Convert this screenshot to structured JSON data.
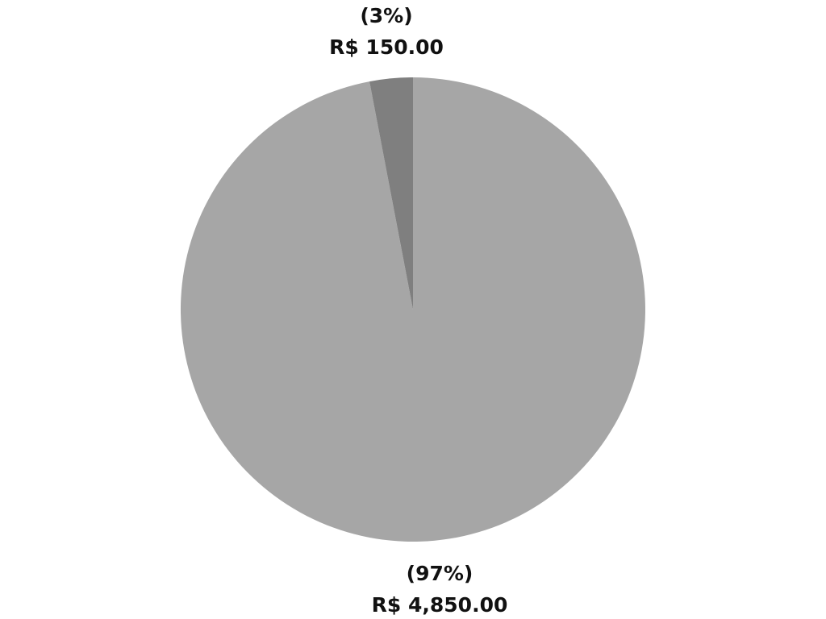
{
  "chart_data": {
    "type": "pie",
    "title": "",
    "start": "top",
    "direction": "clockwise",
    "slices": [
      {
        "value": 4850,
        "percent": 97,
        "percent_label": "(97%)",
        "value_label": "R$ 4,850.00",
        "color": "#a6a6a6"
      },
      {
        "value": 150,
        "percent": 3,
        "percent_label": "(3%)",
        "value_label": "R$ 150.00",
        "color": "#7f7f7f"
      }
    ]
  }
}
